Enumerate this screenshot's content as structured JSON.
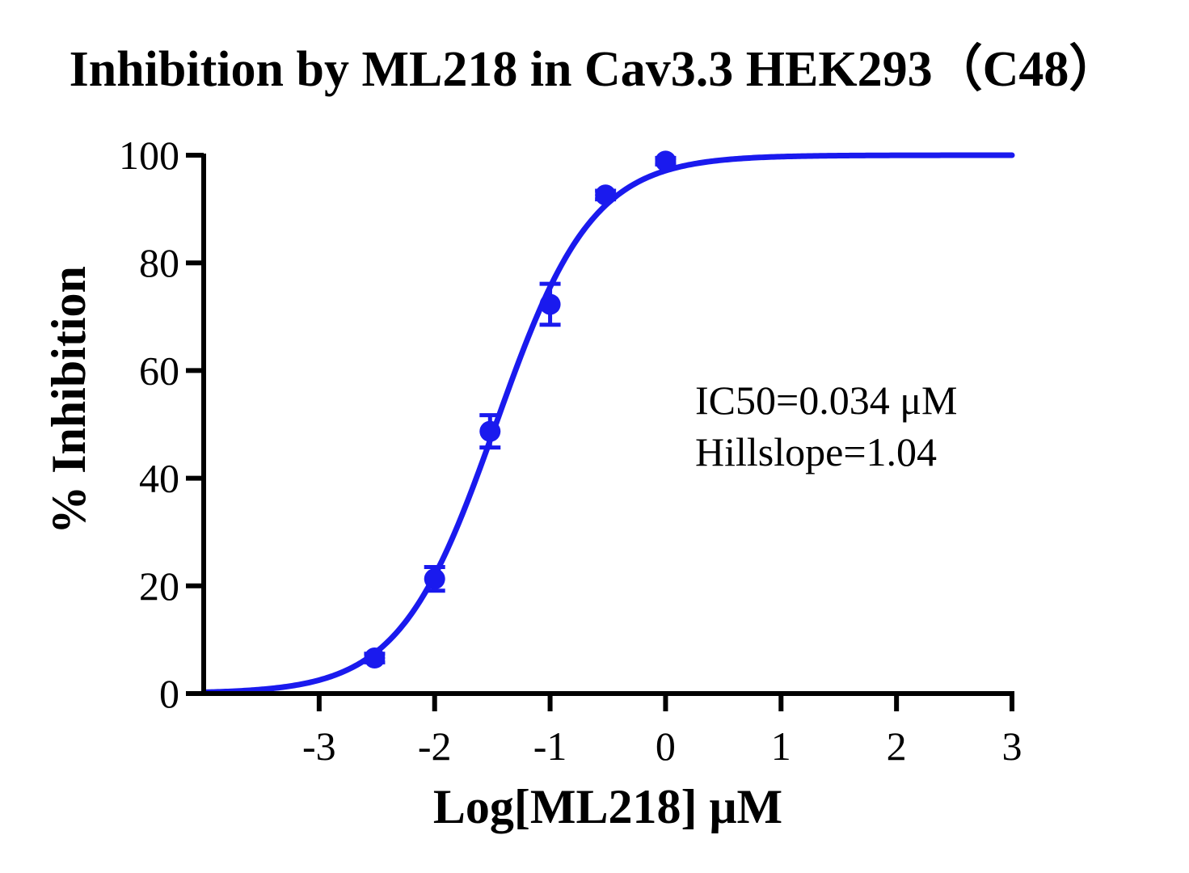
{
  "chart_data": {
    "type": "scatter",
    "title": "Inhibition by ML218 in Cav3.3 HEK293（C48）",
    "xlabel": "Log[ML218] μM",
    "ylabel": "% Inhibition",
    "xlim": [
      -4,
      3
    ],
    "ylim": [
      0,
      100
    ],
    "xticks": [
      -3,
      -2,
      -1,
      0,
      1,
      2,
      3
    ],
    "yticks": [
      0,
      20,
      40,
      60,
      80,
      100
    ],
    "series": [
      {
        "points": [
          {
            "x": -2.52,
            "y": 6.6,
            "err": 0.8
          },
          {
            "x": -2.0,
            "y": 21.3,
            "err": 2.2
          },
          {
            "x": -1.52,
            "y": 48.7,
            "err": 3.0
          },
          {
            "x": -1.0,
            "y": 72.3,
            "err": 3.8
          },
          {
            "x": -0.52,
            "y": 92.6,
            "err": 0.8
          },
          {
            "x": 0.0,
            "y": 98.9,
            "err": 0.6
          }
        ],
        "color": "#1a1aee"
      }
    ],
    "fit": {
      "model": "four-parameter logistic",
      "bottom": 0,
      "top": 100,
      "logIC50": -1.47,
      "hillslope": 1.04
    },
    "annotations": [
      "IC50=0.034 μM",
      "Hillslope=1.04"
    ]
  }
}
